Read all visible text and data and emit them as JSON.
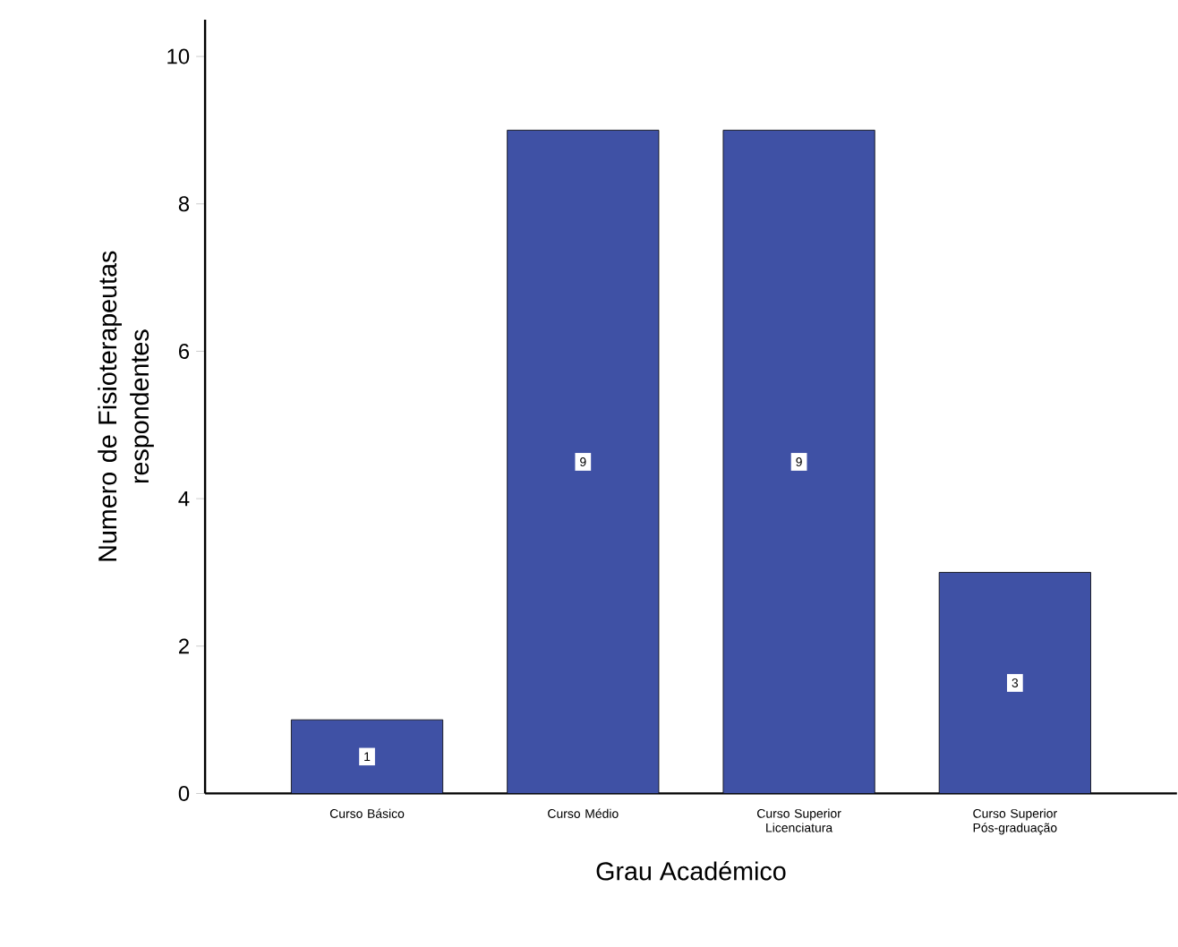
{
  "chart_data": {
    "type": "bar",
    "xlabel": "Grau Académico",
    "ylabel": "Numero de Fisioterapeutas respondentes",
    "categories": [
      "Curso Básico",
      "Curso Médio",
      "Curso Superior Licenciatura",
      "Curso Superior Pós-graduação"
    ],
    "values": [
      1,
      9,
      9,
      3
    ],
    "color": "#3f51a5",
    "ylim": [
      0,
      10.5
    ],
    "yticks": [
      0,
      2,
      4,
      6,
      8,
      10
    ],
    "data_labels": true,
    "grid": false
  }
}
